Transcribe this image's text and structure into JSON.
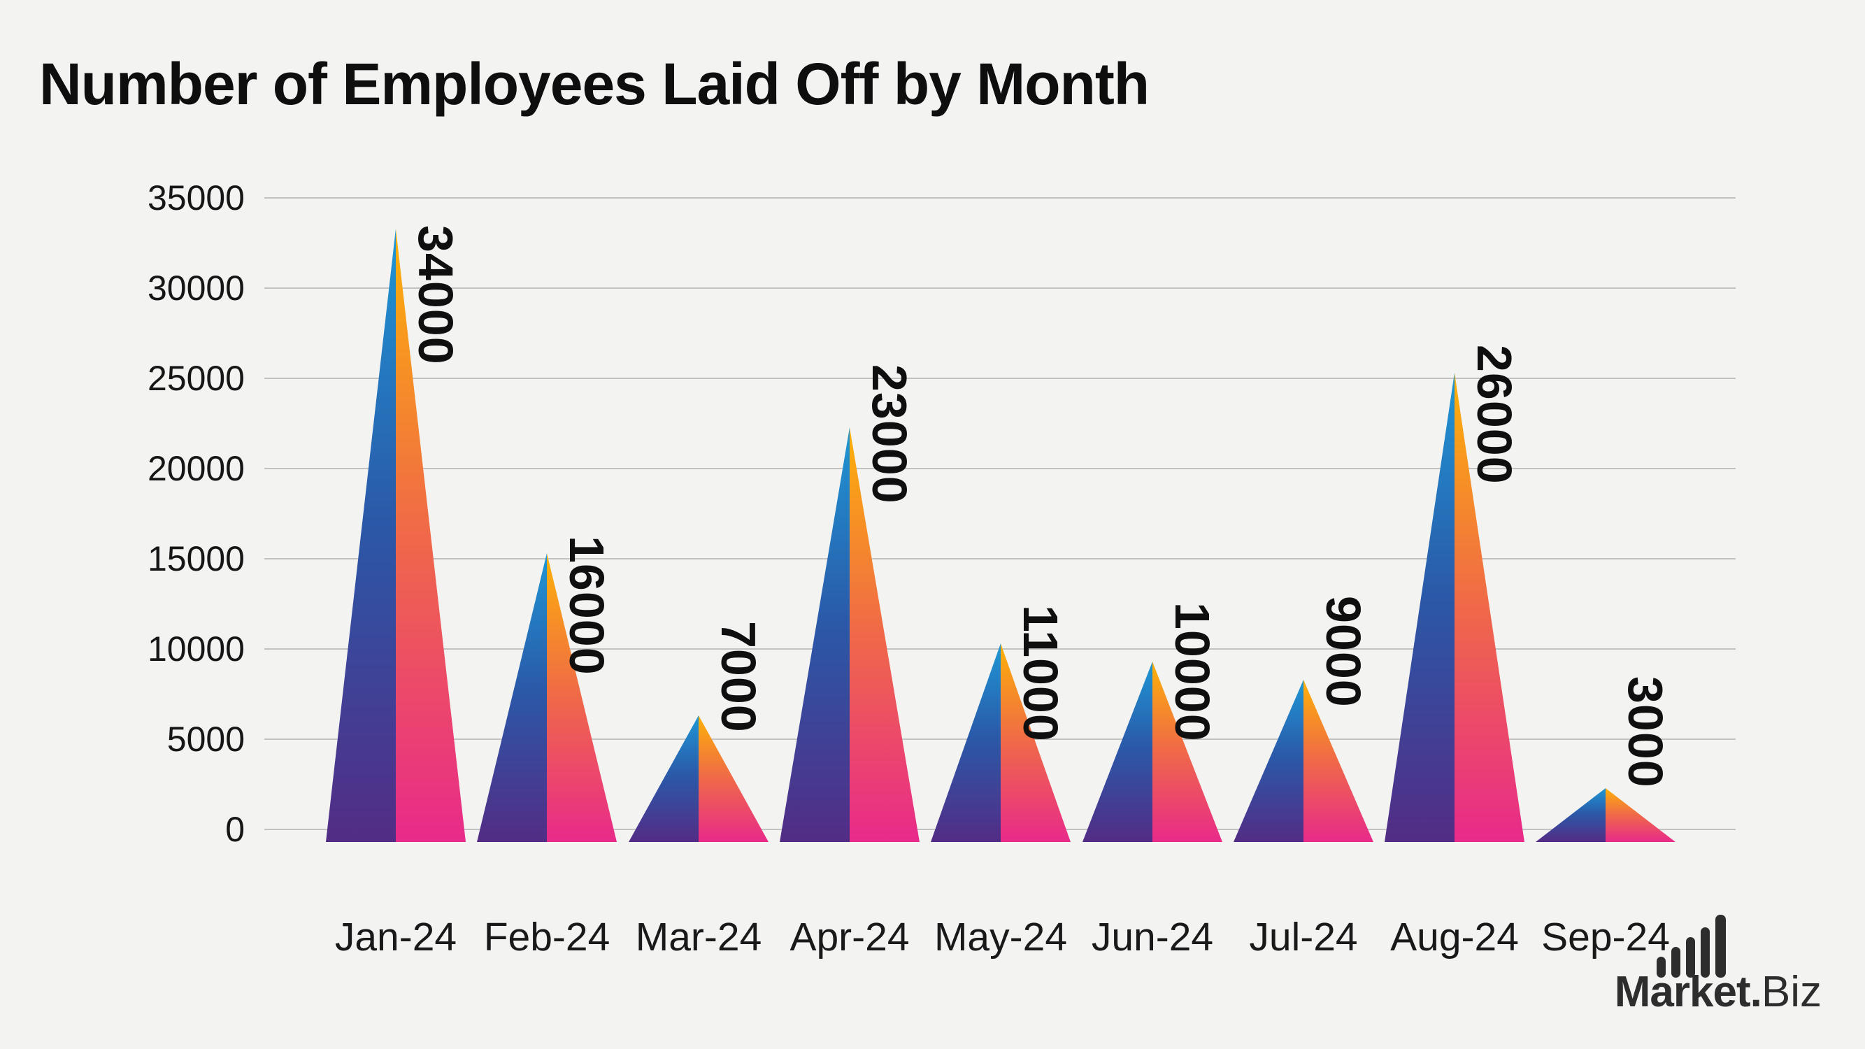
{
  "title": "Number of Employees Laid Off by Month",
  "logo": {
    "brand_bold": "Market",
    "brand_dot": ".",
    "brand_rest": "Biz"
  },
  "colors": {
    "background": "#f3f3f2",
    "grid": "#c2c2c2",
    "text": "#101010",
    "logo": "#2d2d2d",
    "left_gradient": [
      "#1e97d4",
      "#2b58a8",
      "#532c85"
    ],
    "right_gradient": [
      "#fcb207",
      "#f06b46",
      "#e82a8a"
    ]
  },
  "chart_data": {
    "type": "bar",
    "bar_style": "triangle-split-vertical-gradient",
    "title": "Number of Employees Laid Off by Month",
    "categories": [
      "Jan-24",
      "Feb-24",
      "Mar-24",
      "Apr-24",
      "May-24",
      "Jun-24",
      "Jul-24",
      "Aug-24",
      "Sep-24"
    ],
    "values": [
      34000,
      16000,
      7000,
      23000,
      11000,
      10000,
      9000,
      26000,
      3000
    ],
    "value_labels": [
      "34000",
      "16000",
      "7000",
      "23000",
      "11000",
      "10000",
      "9000",
      "26000",
      "3000"
    ],
    "value_labels_rotated": true,
    "xlabel": "",
    "ylabel": "",
    "ylim": [
      0,
      35000
    ],
    "yticks": [
      0,
      5000,
      10000,
      15000,
      20000,
      25000,
      30000,
      35000
    ],
    "grid": "horizontal",
    "legend": "none"
  }
}
